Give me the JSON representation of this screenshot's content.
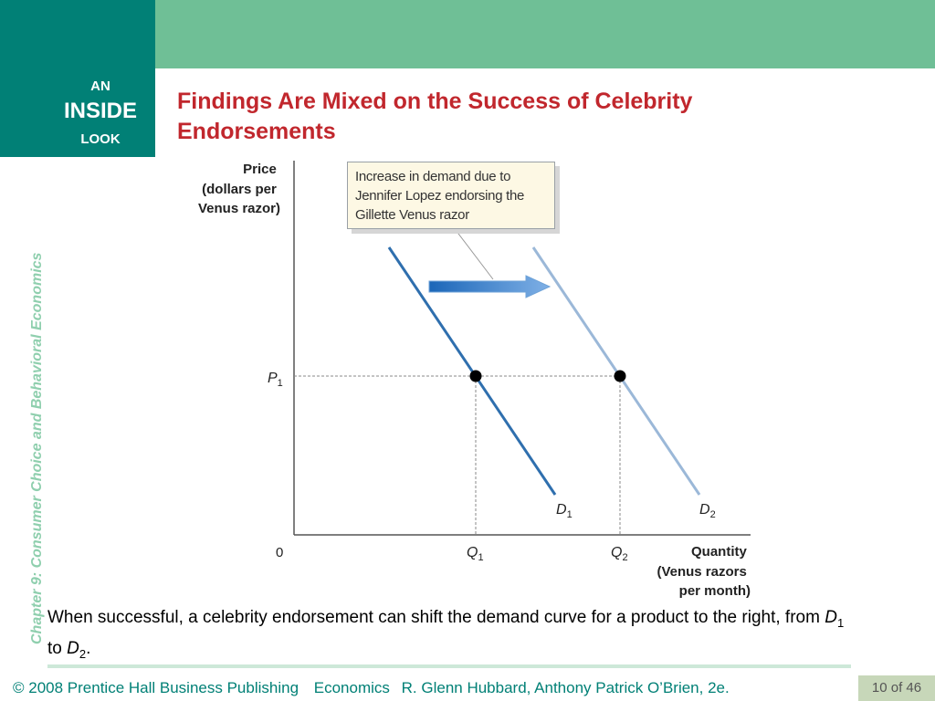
{
  "header": {
    "badge_an": "AN",
    "badge_inside": "INSIDE",
    "badge_look": "LOOK",
    "side_text": "Chapter 9:  Consumer Choice and Behavioral Economics",
    "title": "Findings Are Mixed on the Success of Celebrity Endorsements"
  },
  "diagram": {
    "y_axis_label": [
      "Price",
      "(dollars per",
      "Venus razor)"
    ],
    "x_axis_label": [
      "Quantity",
      "(Venus razors",
      "per month)"
    ],
    "origin": "0",
    "p1": {
      "main": "P",
      "sub": "1"
    },
    "q1": {
      "main": "Q",
      "sub": "1"
    },
    "q2": {
      "main": "Q",
      "sub": "2"
    },
    "d1": {
      "main": "D",
      "sub": "1"
    },
    "d2": {
      "main": "D",
      "sub": "2"
    },
    "callout": "Increase in demand due to Jennifer Lopez endorsing the Gillette Venus razor",
    "colors": {
      "d1": "#2f6fae",
      "d2": "#9bb8d8",
      "arrow": "#2f79c8",
      "callout_bg": "#fdf8e4"
    }
  },
  "caption": {
    "text_a": "When successful, a celebrity endorsement can shift the demand curve for a product to the right, from ",
    "d1_main": "D",
    "d1_sub": "1",
    "text_b": " to ",
    "d2_main": "D",
    "d2_sub": "2",
    "text_c": "."
  },
  "footer": {
    "copyright": "© 2008 Prentice Hall Business Publishing",
    "book": "Economics",
    "authors": "R. Glenn Hubbard, Anthony Patrick O’Brien, 2e.",
    "page": "10 of 46"
  }
}
